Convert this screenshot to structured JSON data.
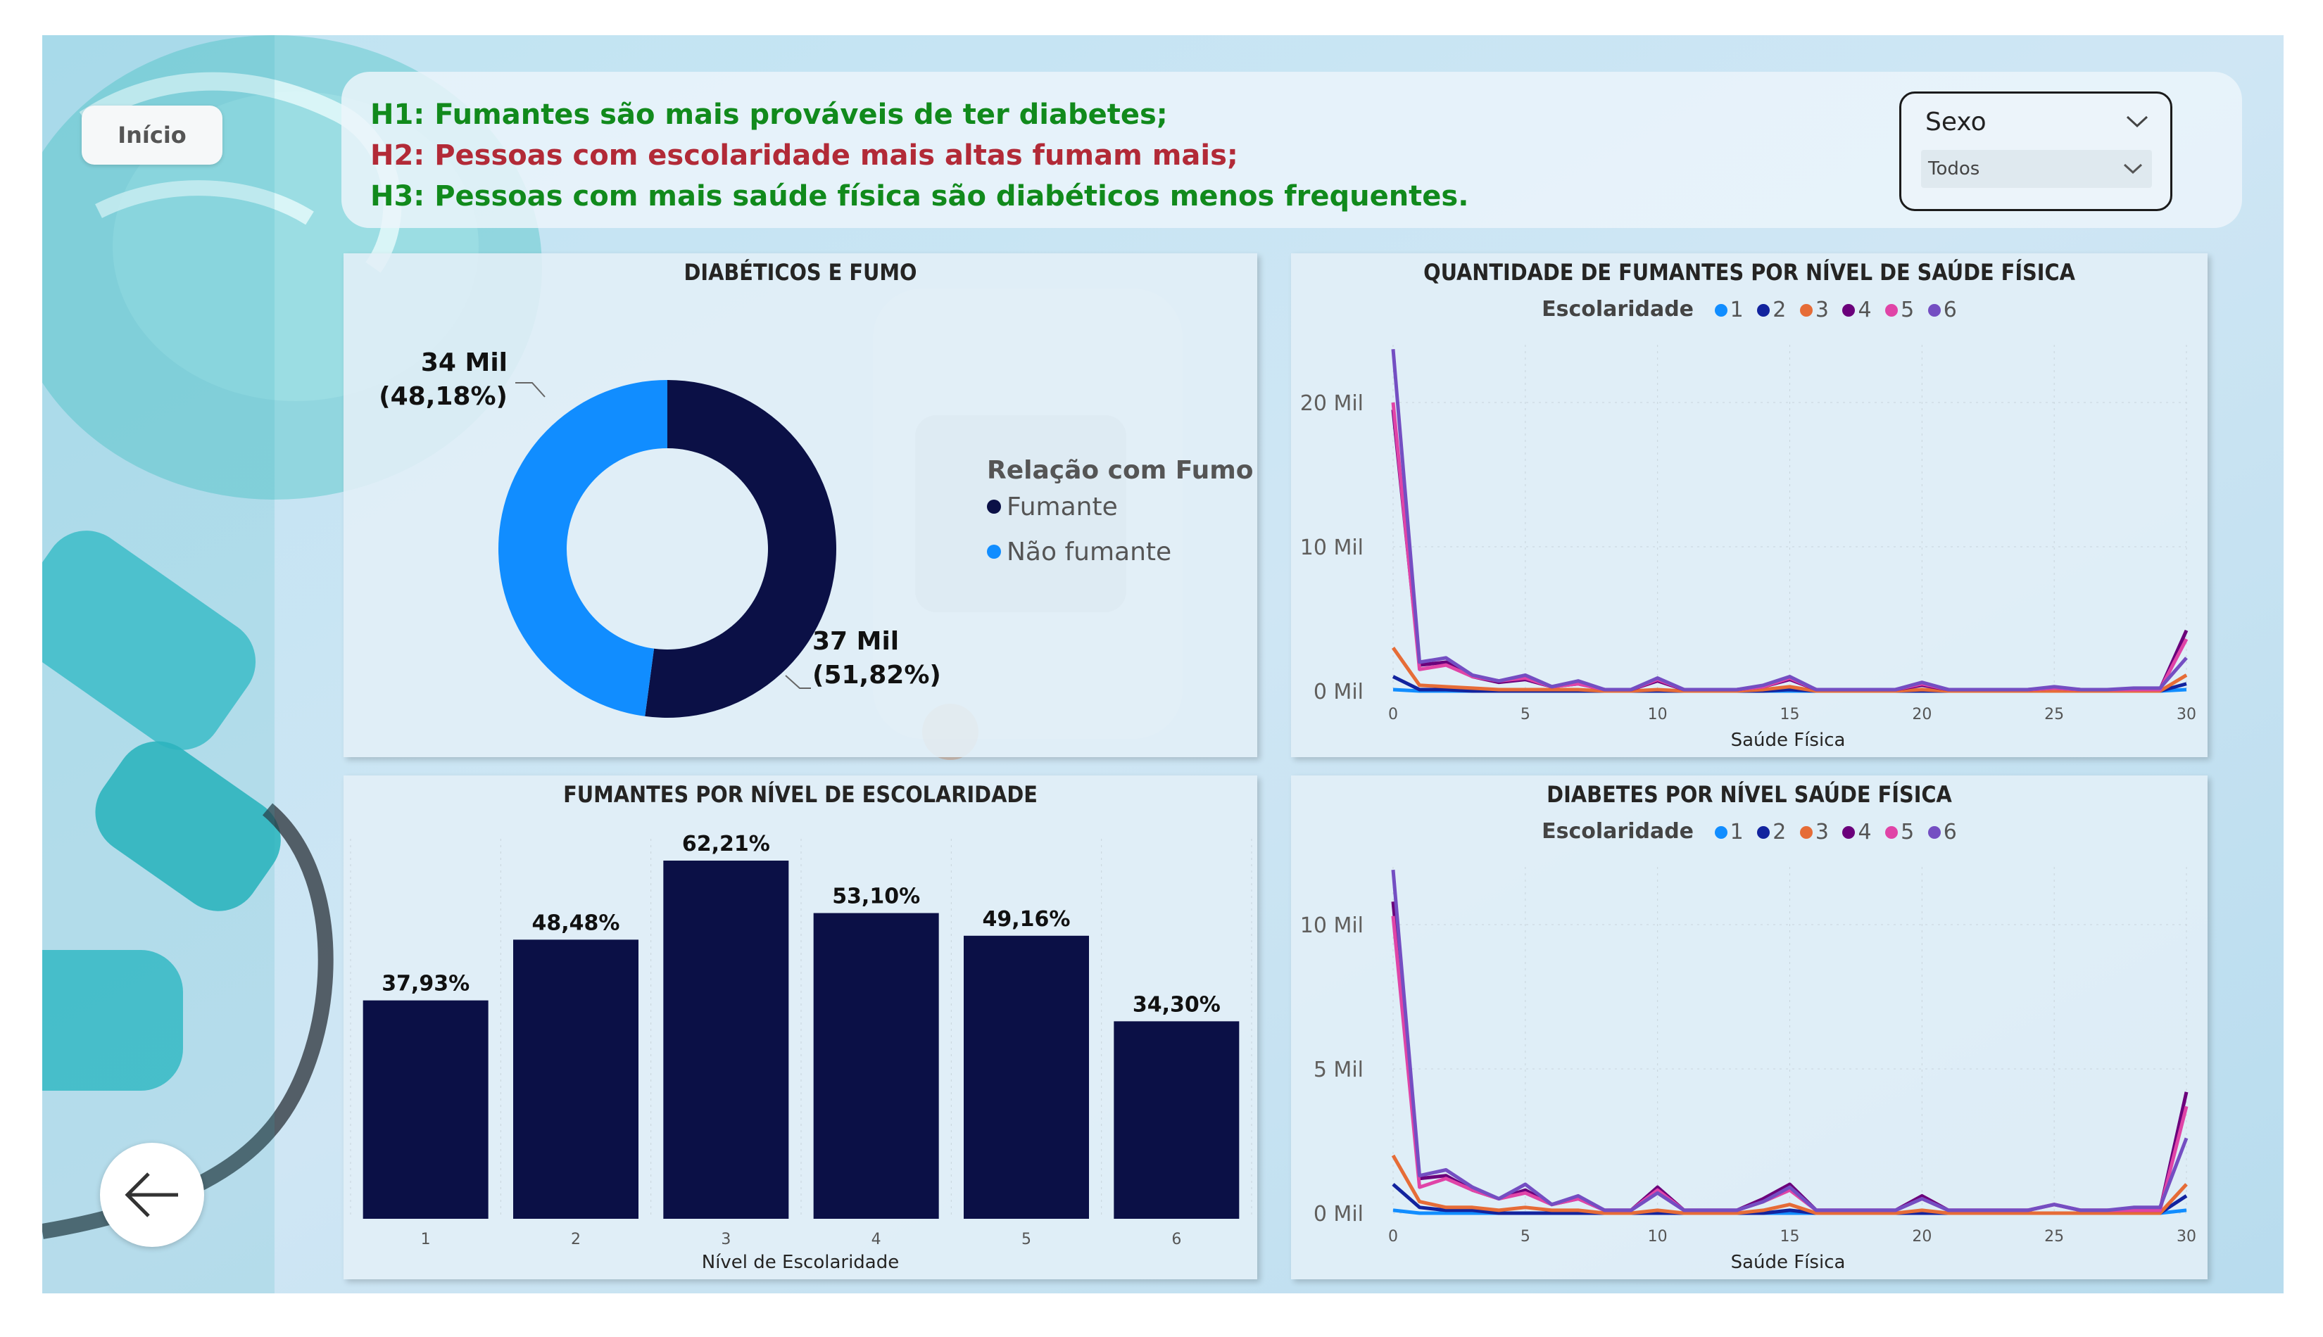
{
  "nav": {
    "home_label": "Início"
  },
  "hypotheses": [
    {
      "text": "H1: Fumantes são mais prováveis de ter diabetes;",
      "color": "#118a1c"
    },
    {
      "text": "H2: Pessoas com escolaridade mais altas fumam mais;",
      "color": "#b22a37"
    },
    {
      "text": "H3: Pessoas com mais saúde física são diabéticos menos frequentes.",
      "color": "#118a1c"
    }
  ],
  "slicer": {
    "title": "Sexo",
    "selected": "Todos"
  },
  "series_colors": [
    "#118dff",
    "#12239e",
    "#e66c37",
    "#6b007b",
    "#e044a7",
    "#744ec2"
  ],
  "donut": {
    "title": "DIABÉTICOS E FUMO",
    "legend_title": "Relação com Fumo",
    "labels": [
      "Fumante",
      "Não fumante"
    ],
    "colors": [
      "#0b1046",
      "#118dff"
    ],
    "slice_labels": [
      {
        "value": "37 Mil",
        "pct": "(51,82%)"
      },
      {
        "value": "34 Mil",
        "pct": "(48,18%)"
      }
    ]
  },
  "bar_panel": {
    "title": "FUMANTES POR NÍVEL DE ESCOLARIDADE",
    "xlabel": "Nível de Escolaridade",
    "value_labels": [
      "37,93%",
      "48,48%",
      "62,21%",
      "53,10%",
      "49,16%",
      "34,30%"
    ]
  },
  "line_panel_1": {
    "title": "QUANTIDADE DE FUMANTES POR NÍVEL DE SAÚDE FÍSICA",
    "legend_title": "Escolaridade",
    "xlabel": "Saúde Física",
    "ytick_labels": [
      "0 Mil",
      "10 Mil",
      "20 Mil"
    ]
  },
  "line_panel_2": {
    "title": "DIABETES POR NÍVEL SAÚDE FÍSICA",
    "legend_title": "Escolaridade",
    "xlabel": "Saúde Física",
    "ytick_labels": [
      "0 Mil",
      "5 Mil",
      "10 Mil"
    ]
  },
  "chart_data": [
    {
      "type": "pie",
      "title": "DIABÉTICOS E FUMO",
      "legend_title": "Relação com Fumo",
      "labels": [
        "Fumante",
        "Não fumante"
      ],
      "values": [
        37000,
        34000
      ],
      "percentages": [
        51.82,
        48.18
      ]
    },
    {
      "type": "bar",
      "title": "FUMANTES POR NÍVEL DE ESCOLARIDADE",
      "xlabel": "Nível de Escolaridade",
      "ylabel": "",
      "categories": [
        "1",
        "2",
        "3",
        "4",
        "5",
        "6"
      ],
      "values": [
        37.93,
        48.48,
        62.21,
        53.1,
        49.16,
        34.3
      ],
      "ylim": [
        0,
        66
      ]
    },
    {
      "type": "line",
      "title": "QUANTIDADE DE FUMANTES POR NÍVEL DE SAÚDE FÍSICA",
      "xlabel": "Saúde Física",
      "ylabel": "",
      "legend_title": "Escolaridade",
      "x": [
        0,
        1,
        2,
        3,
        4,
        5,
        6,
        7,
        8,
        9,
        10,
        11,
        12,
        13,
        14,
        15,
        16,
        17,
        18,
        19,
        20,
        21,
        22,
        23,
        24,
        25,
        26,
        27,
        28,
        29,
        30
      ],
      "xticks": [
        0,
        5,
        10,
        15,
        20,
        25,
        30
      ],
      "ylim": [
        0,
        24
      ],
      "yticks": [
        0,
        10,
        20
      ],
      "series": [
        {
          "name": "1",
          "values": [
            0.1,
            0,
            0,
            0,
            0,
            0,
            0,
            0,
            0,
            0,
            0,
            0,
            0,
            0,
            0,
            0,
            0,
            0,
            0,
            0,
            0,
            0,
            0,
            0,
            0,
            0,
            0,
            0,
            0,
            0,
            0.1
          ]
        },
        {
          "name": "2",
          "values": [
            1.0,
            0.1,
            0.1,
            0,
            0,
            0,
            0,
            0,
            0,
            0,
            0,
            0,
            0,
            0,
            0,
            0.1,
            0,
            0,
            0,
            0,
            0,
            0,
            0,
            0,
            0,
            0,
            0,
            0,
            0,
            0,
            0.5
          ]
        },
        {
          "name": "3",
          "values": [
            3.0,
            0.4,
            0.3,
            0.2,
            0.1,
            0.1,
            0.1,
            0.1,
            0,
            0,
            0.1,
            0,
            0,
            0,
            0.1,
            0.3,
            0,
            0,
            0,
            0,
            0.1,
            0,
            0,
            0,
            0,
            0,
            0,
            0,
            0,
            0,
            1.1
          ]
        },
        {
          "name": "4",
          "values": [
            19.5,
            1.8,
            2.0,
            1.0,
            0.6,
            0.8,
            0.3,
            0.5,
            0.1,
            0.1,
            0.7,
            0.1,
            0.1,
            0.1,
            0.3,
            0.8,
            0.1,
            0.1,
            0.1,
            0.1,
            0.4,
            0.1,
            0.1,
            0.1,
            0.1,
            0.2,
            0.1,
            0.1,
            0.1,
            0.1,
            4.2
          ]
        },
        {
          "name": "5",
          "values": [
            20.0,
            1.5,
            1.8,
            1.0,
            0.7,
            0.9,
            0.3,
            0.5,
            0.1,
            0.1,
            0.8,
            0.1,
            0.1,
            0.1,
            0.3,
            0.9,
            0.1,
            0.1,
            0.1,
            0.1,
            0.5,
            0.1,
            0.1,
            0.1,
            0.1,
            0.2,
            0.1,
            0.1,
            0.1,
            0.1,
            3.6
          ]
        },
        {
          "name": "6",
          "values": [
            23.7,
            2.0,
            2.3,
            1.1,
            0.7,
            1.1,
            0.3,
            0.7,
            0.1,
            0.1,
            0.9,
            0.1,
            0.1,
            0.1,
            0.4,
            1.0,
            0.1,
            0.1,
            0.1,
            0.1,
            0.6,
            0.1,
            0.1,
            0.1,
            0.1,
            0.3,
            0.1,
            0.1,
            0.2,
            0.2,
            2.3
          ]
        }
      ]
    },
    {
      "type": "line",
      "title": "DIABETES POR NÍVEL SAÚDE FÍSICA",
      "xlabel": "Saúde Física",
      "ylabel": "",
      "legend_title": "Escolaridade",
      "x": [
        0,
        1,
        2,
        3,
        4,
        5,
        6,
        7,
        8,
        9,
        10,
        11,
        12,
        13,
        14,
        15,
        16,
        17,
        18,
        19,
        20,
        21,
        22,
        23,
        24,
        25,
        26,
        27,
        28,
        29,
        30
      ],
      "xticks": [
        0,
        5,
        10,
        15,
        20,
        25,
        30
      ],
      "ylim": [
        0,
        12
      ],
      "yticks": [
        0,
        5,
        10
      ],
      "series": [
        {
          "name": "1",
          "values": [
            0.1,
            0,
            0,
            0,
            0,
            0,
            0,
            0,
            0,
            0,
            0,
            0,
            0,
            0,
            0,
            0,
            0,
            0,
            0,
            0,
            0,
            0,
            0,
            0,
            0,
            0,
            0,
            0,
            0,
            0,
            0.1
          ]
        },
        {
          "name": "2",
          "values": [
            1.0,
            0.2,
            0.1,
            0.1,
            0,
            0,
            0,
            0,
            0,
            0,
            0,
            0,
            0,
            0,
            0,
            0.1,
            0,
            0,
            0,
            0,
            0,
            0,
            0,
            0,
            0,
            0,
            0,
            0,
            0,
            0,
            0.6
          ]
        },
        {
          "name": "3",
          "values": [
            2.0,
            0.4,
            0.2,
            0.2,
            0.1,
            0.2,
            0.1,
            0.1,
            0,
            0,
            0.1,
            0,
            0,
            0,
            0.1,
            0.3,
            0,
            0,
            0,
            0,
            0.1,
            0,
            0,
            0,
            0,
            0,
            0,
            0,
            0,
            0,
            1.0
          ]
        },
        {
          "name": "4",
          "values": [
            10.8,
            1.2,
            1.3,
            0.8,
            0.5,
            0.8,
            0.3,
            0.5,
            0.1,
            0.1,
            0.9,
            0.1,
            0.1,
            0.1,
            0.5,
            1.0,
            0.1,
            0.1,
            0.1,
            0.1,
            0.6,
            0.1,
            0.1,
            0.1,
            0.1,
            0.3,
            0.1,
            0.1,
            0.1,
            0.1,
            4.2
          ]
        },
        {
          "name": "5",
          "values": [
            10.3,
            0.9,
            1.2,
            0.8,
            0.5,
            0.7,
            0.3,
            0.5,
            0.1,
            0.1,
            0.8,
            0.1,
            0.1,
            0.1,
            0.4,
            0.8,
            0.1,
            0.1,
            0.1,
            0.1,
            0.5,
            0.1,
            0.1,
            0.1,
            0.1,
            0.3,
            0.1,
            0.1,
            0.1,
            0.1,
            3.7
          ]
        },
        {
          "name": "6",
          "values": [
            11.9,
            1.3,
            1.5,
            0.9,
            0.5,
            1.0,
            0.3,
            0.6,
            0.1,
            0.1,
            0.7,
            0.1,
            0.1,
            0.1,
            0.4,
            0.9,
            0.1,
            0.1,
            0.1,
            0.1,
            0.5,
            0.1,
            0.1,
            0.1,
            0.1,
            0.3,
            0.1,
            0.1,
            0.2,
            0.2,
            2.6
          ]
        }
      ]
    }
  ]
}
